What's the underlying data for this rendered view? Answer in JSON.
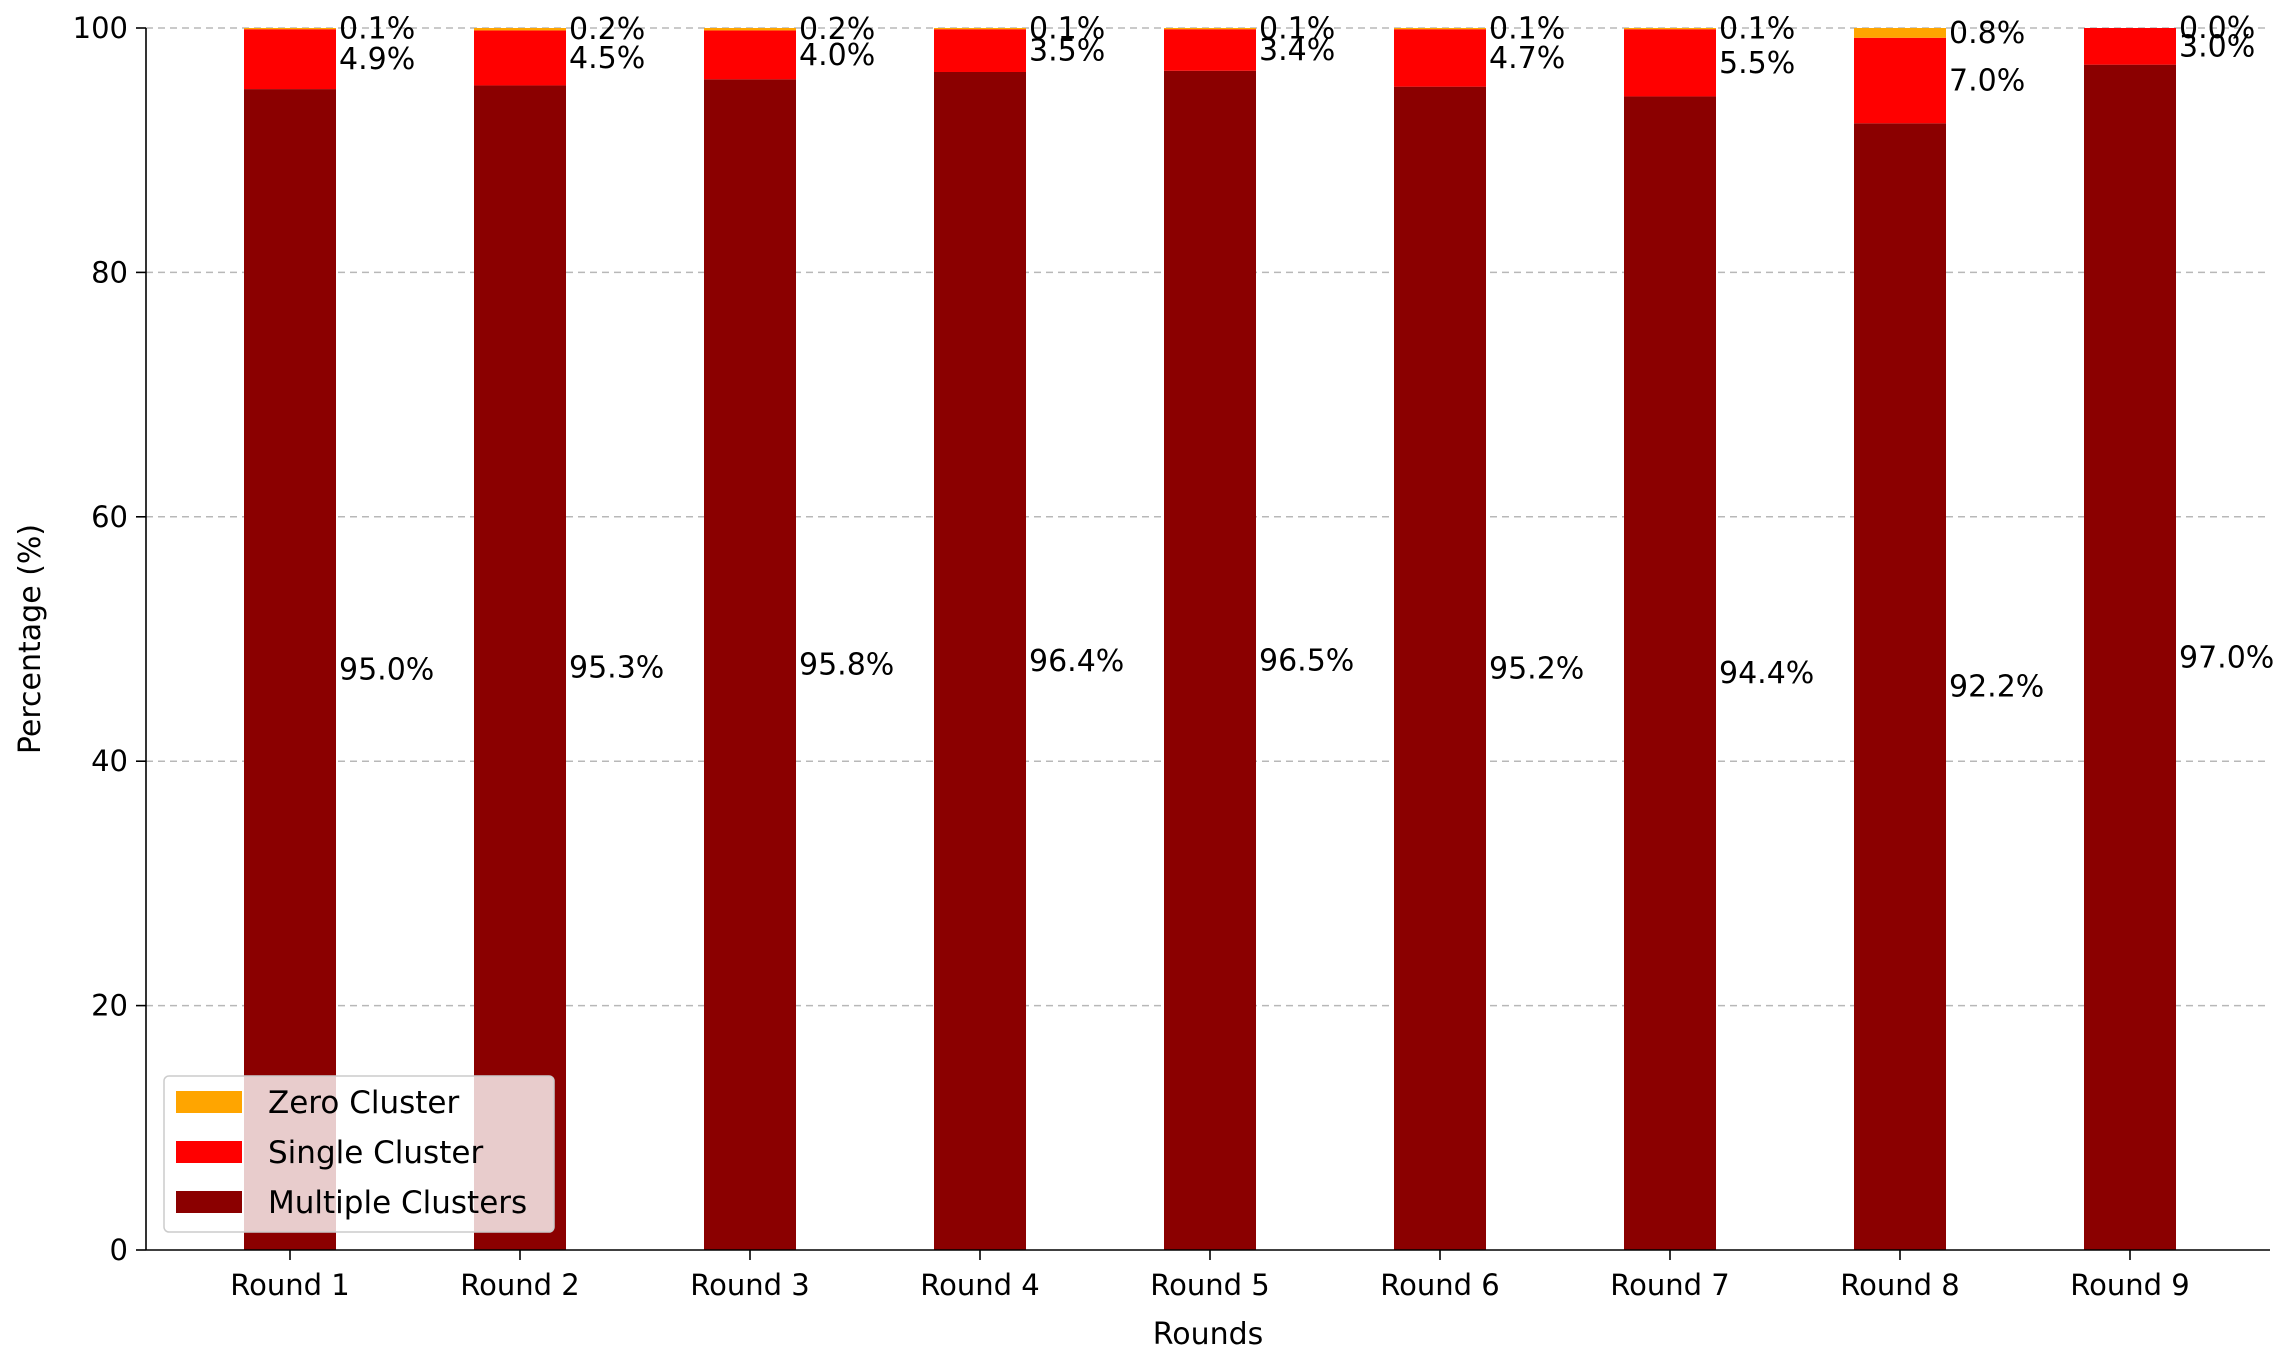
{
  "chart_data": {
    "type": "bar",
    "stacked": true,
    "categories": [
      "Round 1",
      "Round 2",
      "Round 3",
      "Round 4",
      "Round 5",
      "Round 6",
      "Round 7",
      "Round 8",
      "Round 9"
    ],
    "series": [
      {
        "name": "Multiple Clusters",
        "color": "#8b0000",
        "values": [
          95.0,
          95.3,
          95.8,
          96.4,
          96.5,
          95.2,
          94.4,
          92.2,
          97.0
        ],
        "labels": [
          "95.0%",
          "95.3%",
          "95.8%",
          "96.4%",
          "96.5%",
          "95.2%",
          "94.4%",
          "92.2%",
          "97.0%"
        ]
      },
      {
        "name": "Single Cluster",
        "color": "#ff0000",
        "values": [
          4.9,
          4.5,
          4.0,
          3.5,
          3.4,
          4.7,
          5.5,
          7.0,
          3.0
        ],
        "labels": [
          "4.9%",
          "4.5%",
          "4.0%",
          "3.5%",
          "3.4%",
          "4.7%",
          "5.5%",
          "7.0%",
          "3.0%"
        ]
      },
      {
        "name": "Zero Cluster",
        "color": "#ffa500",
        "values": [
          0.1,
          0.2,
          0.2,
          0.1,
          0.1,
          0.1,
          0.1,
          0.8,
          0.0
        ],
        "labels": [
          "0.1%",
          "0.2%",
          "0.2%",
          "0.1%",
          "0.1%",
          "0.1%",
          "0.1%",
          "0.8%",
          "0.0%"
        ]
      }
    ],
    "legend_order": [
      "Zero Cluster",
      "Single Cluster",
      "Multiple Clusters"
    ],
    "xlabel": "Rounds",
    "ylabel": "Percentage (%)",
    "ylim": [
      0,
      100
    ],
    "yticks": [
      0,
      20,
      40,
      60,
      80,
      100
    ],
    "grid": "y-dashed",
    "legend_position": "lower-left"
  }
}
